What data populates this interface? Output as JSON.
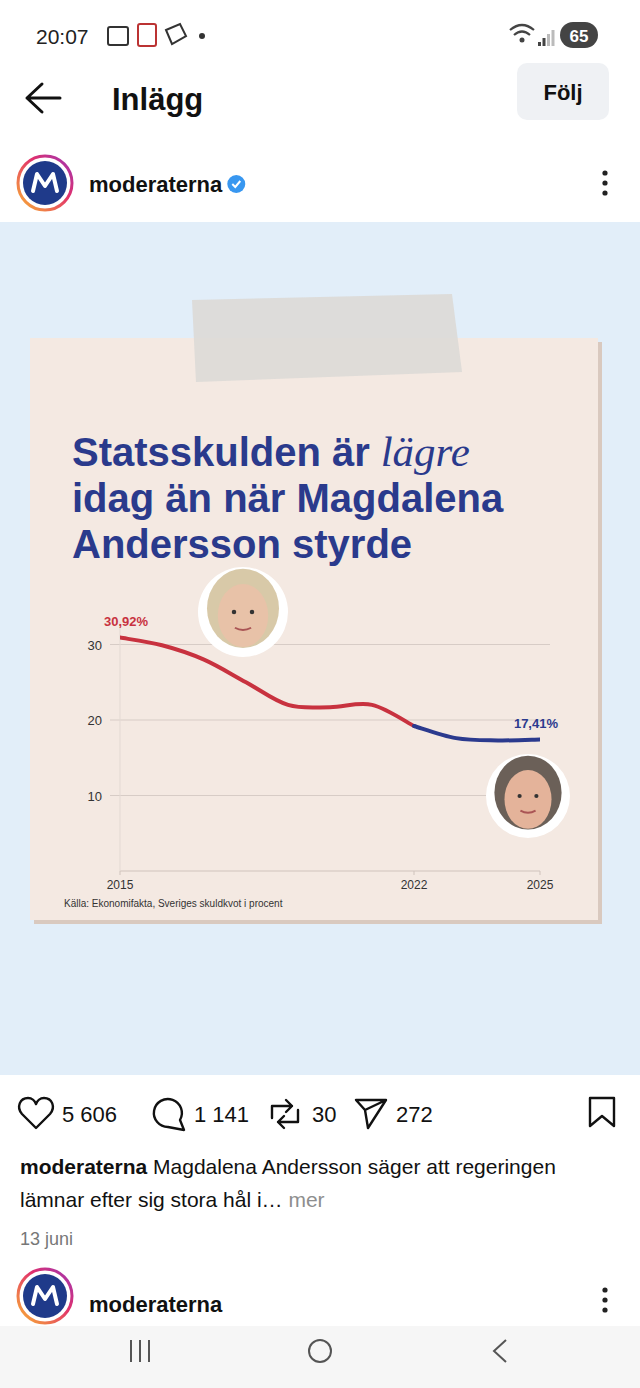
{
  "status_bar": {
    "time": "20:07",
    "battery": "65"
  },
  "header": {
    "title": "Inlägg",
    "follow_button": "Följ"
  },
  "post": {
    "account": "moderaterna",
    "likes": "5 606",
    "comments": "1 141",
    "reposts": "30",
    "shares": "272",
    "caption_account": "moderaterna",
    "caption": "Magdalena Andersson säger att regeringen lämnar efter sig stora hål i…",
    "more": "mer",
    "date": "13 juni",
    "next_account": "moderaterna"
  },
  "card": {
    "title_emphasis": "lägre"
  },
  "chart_data": {
    "type": "line",
    "title": "Statsskulden är lägre idag än när Magdalena Andersson styrde",
    "source": "Källa: Ekonomifakta, Sveriges skuldkvot i procent",
    "x": [
      2015,
      2016,
      2017,
      2018,
      2019,
      2020,
      2021,
      2022,
      2023,
      2024,
      2025
    ],
    "xlim": [
      2015,
      2025
    ],
    "xticks": [
      2015,
      2022,
      2025
    ],
    "ylim": [
      0,
      33
    ],
    "yticks": [
      10,
      20,
      30
    ],
    "grid": true,
    "series": [
      {
        "color": "#c8323f",
        "values": [
          30.92,
          29.9,
          28.0,
          25.0,
          22.0,
          21.7,
          22.0,
          19.2,
          null,
          null,
          null
        ],
        "value_labels": [
          "30,92%",
          null,
          null,
          null,
          null,
          null,
          null,
          null,
          null,
          null,
          null
        ]
      },
      {
        "color": "#2b3a8e",
        "values": [
          null,
          null,
          null,
          null,
          null,
          null,
          null,
          19.2,
          17.6,
          17.3,
          17.41
        ],
        "value_labels": [
          null,
          null,
          null,
          null,
          null,
          null,
          null,
          null,
          null,
          null,
          "17,41%"
        ]
      }
    ]
  }
}
